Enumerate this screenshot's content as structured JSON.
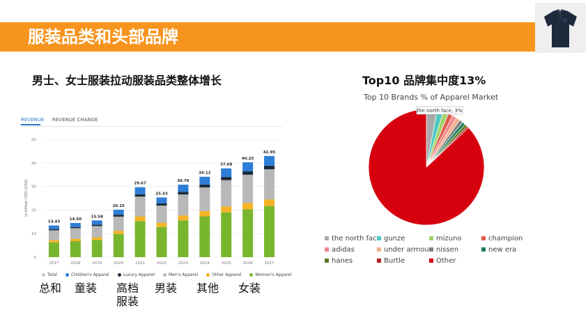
{
  "slide": {
    "title": "服装品类和头部品牌",
    "left_heading": "男士、女士服装拉动服装品类整体增长",
    "right_heading": "Top10 品牌集中度13%",
    "bottom_labels": {
      "total": "总和",
      "children": "童装",
      "luxury_line1": "高档",
      "luxury_line2": "服装",
      "men": "男装",
      "other": "其他",
      "women": "女装"
    }
  },
  "tabs": {
    "revenue": "REVENUE",
    "revenue_change": "REVENUE CHANGE"
  },
  "chart_data": [
    {
      "type": "bar",
      "stacked": true,
      "title": "",
      "xlabel": "",
      "ylabel": "in billion USD (US$)",
      "ylim": [
        0,
        50
      ],
      "yticks": [
        "0",
        "10",
        "20",
        "30",
        "40",
        "50"
      ],
      "categories": [
        "2017",
        "2018",
        "2019",
        "2020",
        "2021",
        "2022",
        "2023",
        "2024",
        "2025",
        "2026",
        "2027"
      ],
      "totals": [
        13.43,
        14.5,
        15.58,
        20.15,
        29.67,
        25.33,
        30.76,
        34.12,
        37.68,
        40.25,
        42.95
      ],
      "total_labels": [
        "13.43",
        "14.50",
        "15.58",
        "20.15",
        "29.67",
        "25.33",
        "30.76",
        "34.12",
        "37.68",
        "40.25",
        "42.95"
      ],
      "series": [
        {
          "name": "Women's Apparel",
          "color": "#78b62e",
          "values": [
            6.3,
            6.8,
            7.3,
            9.8,
            15.3,
            12.8,
            15.6,
            17.3,
            19.0,
            20.3,
            21.7
          ]
        },
        {
          "name": "Other Apparel",
          "color": "#f5b325",
          "values": [
            0.9,
            1.0,
            1.1,
            1.4,
            2.0,
            1.8,
            2.1,
            2.3,
            2.5,
            2.7,
            2.8
          ]
        },
        {
          "name": "Men's Apparel",
          "color": "#b8b8b8",
          "values": [
            4.2,
            4.5,
            4.8,
            6.0,
            8.4,
            7.3,
            8.9,
            10.0,
            11.2,
            12.0,
            12.8
          ]
        },
        {
          "name": "Luxury Apparel",
          "color": "#1b2a3a",
          "values": [
            0.5,
            0.5,
            0.6,
            0.8,
            1.0,
            0.9,
            1.1,
            1.2,
            1.3,
            1.4,
            1.5
          ]
        },
        {
          "name": "Children's Apparel",
          "color": "#2e7dd6",
          "values": [
            1.53,
            1.7,
            1.78,
            2.15,
            2.97,
            2.53,
            3.06,
            3.32,
            3.68,
            3.85,
            4.15
          ]
        }
      ],
      "legend": [
        "Total",
        "Children's Apparel",
        "Luxury Apparel",
        "Men's Apparel",
        "Other Apparel",
        "Women's Apparel"
      ],
      "legend_colors": [
        "#c9c9c9",
        "#2e7dd6",
        "#1b2a3a",
        "#b8b8b8",
        "#f5b325",
        "#78b62e"
      ]
    },
    {
      "type": "pie",
      "title": "Top 10 Brands % of Apparel Market",
      "annotation": "the north face, 3%",
      "slices": [
        {
          "name": "the north face",
          "value": 3,
          "color": "#aaaaaa"
        },
        {
          "name": "gunze",
          "value": 1.7,
          "color": "#4dc9c0"
        },
        {
          "name": "mizuno",
          "value": 1.5,
          "color": "#a2d36b"
        },
        {
          "name": "champion",
          "value": 1.3,
          "color": "#e05a4a"
        },
        {
          "name": "adidas",
          "value": 1.2,
          "color": "#f08a8a"
        },
        {
          "name": "under armour",
          "value": 1.1,
          "color": "#f3b08a"
        },
        {
          "name": "nissen",
          "value": 1.0,
          "color": "#808080"
        },
        {
          "name": "new era",
          "value": 0.9,
          "color": "#1d7a5a"
        },
        {
          "name": "hanes",
          "value": 0.8,
          "color": "#5a7a2a"
        },
        {
          "name": "Burtle",
          "value": 0.5,
          "color": "#b02020"
        },
        {
          "name": "Other",
          "value": 87,
          "color": "#d7000f"
        }
      ]
    }
  ]
}
